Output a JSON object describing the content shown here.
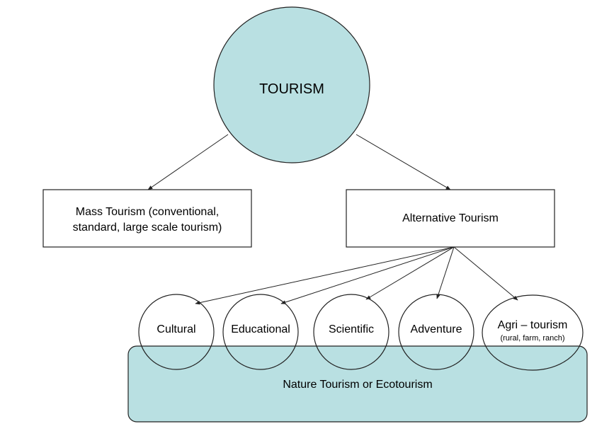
{
  "colors": {
    "fill": "#b9e0e2",
    "stroke": "#222222",
    "background": "#ffffff"
  },
  "root": {
    "label": "TOURISM"
  },
  "mass": {
    "line1": "Mass Tourism (conventional,",
    "line2": "standard, large scale tourism)"
  },
  "alternative": {
    "label": "Alternative Tourism"
  },
  "types": [
    {
      "label": "Cultural",
      "sub": ""
    },
    {
      "label": "Educational",
      "sub": ""
    },
    {
      "label": "Scientific",
      "sub": ""
    },
    {
      "label": "Adventure",
      "sub": ""
    },
    {
      "label": "Agri – tourism",
      "sub": "(rural, farm, ranch)"
    }
  ],
  "nature": {
    "label": "Nature Tourism or Ecotourism"
  }
}
